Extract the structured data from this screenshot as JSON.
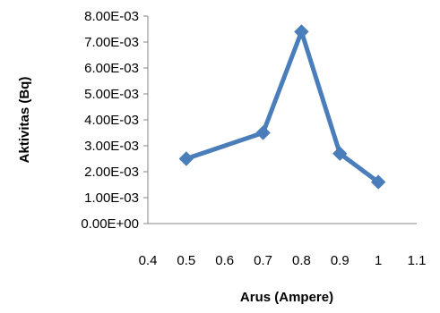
{
  "chart_data": {
    "type": "line",
    "title": "",
    "xlabel": "Arus (Ampere)",
    "ylabel": "Aktivitas (Bq)",
    "xlim": [
      0.4,
      1.1
    ],
    "ylim": [
      0,
      0.008
    ],
    "x_ticks": [
      0.4,
      0.5,
      0.6,
      0.7,
      0.8,
      0.9,
      1.0,
      1.1
    ],
    "x_tick_labels": [
      "0.4",
      "0.5",
      "0.6",
      "0.7",
      "0.8",
      "0.9",
      "1",
      "1.1"
    ],
    "y_ticks": [
      0,
      0.001,
      0.002,
      0.003,
      0.004,
      0.005,
      0.006,
      0.007,
      0.008
    ],
    "y_tick_labels": [
      "0.00E+00",
      "1.00E-03",
      "2.00E-03",
      "3.00E-03",
      "4.00E-03",
      "5.00E-03",
      "6.00E-03",
      "7.00E-03",
      "8.00E-03"
    ],
    "grid": false,
    "legend": "none",
    "series": [
      {
        "x": [
          0.5,
          0.7,
          0.8,
          0.9,
          1.0
        ],
        "y": [
          0.0025,
          0.0035,
          0.0074,
          0.0027,
          0.0016
        ],
        "color": "#4a7ebb",
        "marker": "diamond"
      }
    ]
  }
}
